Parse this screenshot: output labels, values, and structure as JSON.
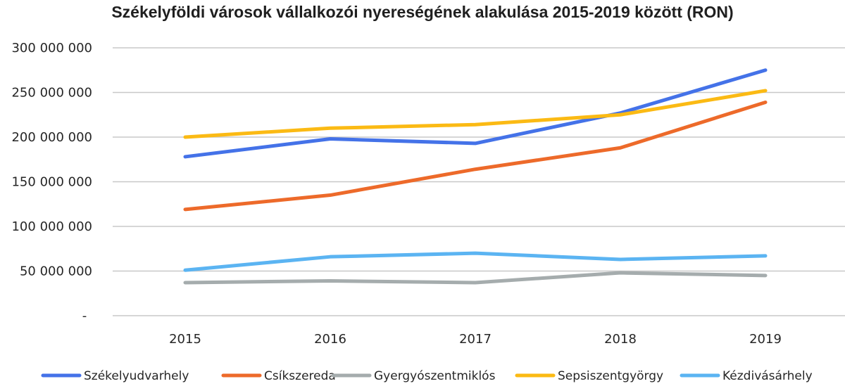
{
  "chart_data": {
    "type": "line",
    "title": "Székelyföldi városok vállalkozói nyereségének alakulása 2015-2019 között (RON)",
    "categories": [
      "2015",
      "2016",
      "2017",
      "2018",
      "2019"
    ],
    "y_tick_labels": [
      "-",
      "50 000 000",
      "100 000 000",
      "150 000 000",
      "200 000 000",
      "250 000 000",
      "300 000 000"
    ],
    "ylim": [
      0,
      300000000
    ],
    "grid": true,
    "legend_position": "bottom",
    "series": [
      {
        "name": "Székelyudvarhely",
        "color": "#4472E8",
        "values": [
          178000000,
          198000000,
          193000000,
          227000000,
          275000000
        ]
      },
      {
        "name": "Csíkszereda",
        "color": "#ED6A2A",
        "values": [
          119000000,
          135000000,
          164000000,
          188000000,
          239000000
        ]
      },
      {
        "name": "Gyergyószentmiklós",
        "color": "#A5ACAD",
        "values": [
          37000000,
          39000000,
          37000000,
          48000000,
          45000000
        ]
      },
      {
        "name": "Sepsiszentgyörgy",
        "color": "#FBBA14",
        "values": [
          200000000,
          210000000,
          214000000,
          225000000,
          252000000
        ]
      },
      {
        "name": "Kézdivásárhely",
        "color": "#5BB4F2",
        "values": [
          51000000,
          66000000,
          70000000,
          63000000,
          67000000
        ]
      }
    ]
  }
}
